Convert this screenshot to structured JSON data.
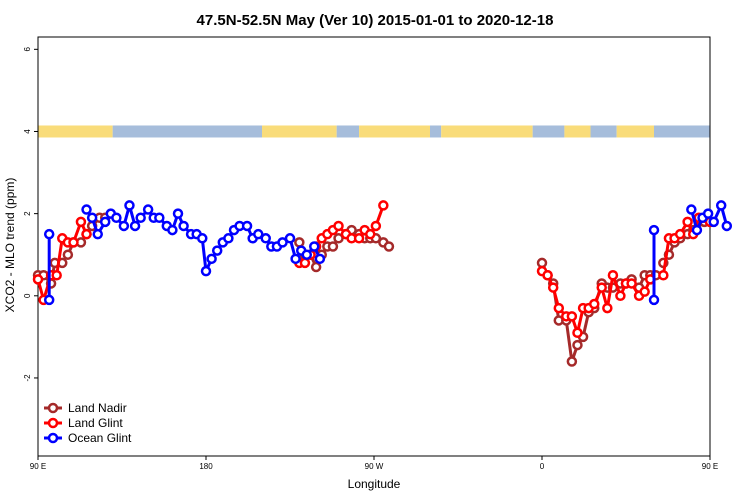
{
  "chart_data": {
    "type": "line",
    "title": "47.5N-52.5N May (Ver 10)   2015-01-01 to 2020-12-18",
    "xlabel": "Longitude",
    "ylabel": "XCO2 - MLO trend (ppm)",
    "xlim": [
      90,
      450
    ],
    "ylim": [
      -3.9,
      6.3
    ],
    "x_ticks": [
      {
        "value": 90,
        "label": "90 E"
      },
      {
        "value": 180,
        "label": "180"
      },
      {
        "value": 270,
        "label": "90 W"
      },
      {
        "value": 360,
        "label": "0"
      },
      {
        "value": 450,
        "label": "90 E"
      },
      {
        "value": 540,
        "label": "180"
      }
    ],
    "y_ticks": [
      {
        "value": -2,
        "label": "-2"
      },
      {
        "value": 0,
        "label": "0"
      },
      {
        "value": 2,
        "label": "2"
      },
      {
        "value": 4,
        "label": "4"
      },
      {
        "value": 6,
        "label": "6"
      }
    ],
    "land_ocean_band": {
      "y": 4,
      "colors": {
        "land": "#f9dc7a",
        "ocean": "#a6bddb"
      },
      "segments": [
        {
          "from": 90,
          "to": 130,
          "type": "land"
        },
        {
          "from": 130,
          "to": 210,
          "type": "ocean"
        },
        {
          "from": 210,
          "to": 250,
          "type": "land"
        },
        {
          "from": 250,
          "to": 262,
          "type": "ocean"
        },
        {
          "from": 262,
          "to": 300,
          "type": "land"
        },
        {
          "from": 300,
          "to": 306,
          "type": "ocean"
        },
        {
          "from": 306,
          "to": 355,
          "type": "land"
        },
        {
          "from": 355,
          "to": 372,
          "type": "ocean"
        },
        {
          "from": 372,
          "to": 386,
          "type": "land"
        },
        {
          "from": 386,
          "to": 400,
          "type": "ocean"
        },
        {
          "from": 400,
          "to": 420,
          "type": "land"
        },
        {
          "from": 420,
          "to": 450,
          "type": "ocean"
        }
      ]
    },
    "legend": {
      "position": "bottom-left",
      "entries": [
        {
          "name": "Land Nadir",
          "color": "#a52a2a"
        },
        {
          "name": "Land Glint",
          "color": "#ff0000"
        },
        {
          "name": "Ocean Glint",
          "color": "#0000ff"
        }
      ]
    },
    "series": [
      {
        "name": "Land Nadir",
        "color": "#a52a2a",
        "segments": [
          [
            [
              90,
              0.5
            ],
            [
              93,
              0.5
            ],
            [
              97,
              0.3
            ],
            [
              99,
              0.8
            ],
            [
              103,
              0.8
            ],
            [
              106,
              1.0
            ],
            [
              109,
              1.3
            ],
            [
              113,
              1.3
            ],
            [
              116,
              1.5
            ],
            [
              119,
              1.7
            ],
            [
              123,
              1.9
            ],
            [
              126,
              1.9
            ]
          ],
          [
            [
              230,
              1.3
            ],
            [
              233,
              1.0
            ],
            [
              236,
              1.0
            ],
            [
              239,
              0.7
            ],
            [
              242,
              1.0
            ],
            [
              245,
              1.2
            ],
            [
              248,
              1.2
            ],
            [
              251,
              1.4
            ],
            [
              255,
              1.5
            ],
            [
              258,
              1.6
            ],
            [
              262,
              1.5
            ],
            [
              265,
              1.4
            ],
            [
              268,
              1.4
            ],
            [
              271,
              1.4
            ],
            [
              275,
              1.3
            ],
            [
              278,
              1.2
            ]
          ],
          [
            [
              360,
              0.8
            ],
            [
              363,
              0.5
            ],
            [
              366,
              0.3
            ],
            [
              369,
              -0.6
            ],
            [
              373,
              -0.6
            ],
            [
              376,
              -1.6
            ],
            [
              379,
              -1.2
            ],
            [
              382,
              -1.0
            ],
            [
              385,
              -0.4
            ],
            [
              388,
              -0.3
            ],
            [
              392,
              0.3
            ],
            [
              395,
              0.2
            ],
            [
              398,
              0.2
            ],
            [
              402,
              0.3
            ],
            [
              405,
              0.3
            ],
            [
              408,
              0.4
            ],
            [
              412,
              0.2
            ],
            [
              415,
              0.5
            ],
            [
              418,
              0.5
            ],
            [
              421,
              0.5
            ]
          ],
          [
            [
              425,
              0.8
            ],
            [
              428,
              1.0
            ],
            [
              431,
              1.3
            ],
            [
              434,
              1.4
            ],
            [
              438,
              1.5
            ],
            [
              441,
              1.6
            ],
            [
              444,
              1.8
            ],
            [
              447,
              1.8
            ]
          ]
        ]
      },
      {
        "name": "Land Glint",
        "color": "#ff0000",
        "segments": [
          [
            [
              90,
              0.4
            ],
            [
              93,
              -0.1
            ],
            [
              97,
              0.5
            ],
            [
              100,
              0.5
            ],
            [
              103,
              1.4
            ],
            [
              106,
              1.3
            ],
            [
              109,
              1.3
            ],
            [
              113,
              1.8
            ],
            [
              116,
              1.5
            ]
          ],
          [
            [
              230,
              0.8
            ],
            [
              233,
              0.8
            ],
            [
              236,
              1.0
            ],
            [
              239,
              1.2
            ],
            [
              242,
              1.4
            ],
            [
              245,
              1.5
            ],
            [
              248,
              1.6
            ],
            [
              251,
              1.7
            ],
            [
              255,
              1.5
            ],
            [
              258,
              1.4
            ],
            [
              262,
              1.4
            ],
            [
              265,
              1.6
            ],
            [
              268,
              1.5
            ],
            [
              271,
              1.7
            ],
            [
              275,
              2.2
            ]
          ],
          [
            [
              360,
              0.6
            ],
            [
              363,
              0.5
            ],
            [
              366,
              0.2
            ],
            [
              369,
              -0.3
            ],
            [
              373,
              -0.5
            ],
            [
              376,
              -0.5
            ],
            [
              379,
              -0.9
            ],
            [
              382,
              -0.3
            ],
            [
              385,
              -0.3
            ],
            [
              388,
              -0.2
            ],
            [
              392,
              0.2
            ],
            [
              395,
              -0.3
            ],
            [
              398,
              0.5
            ],
            [
              402,
              0.0
            ],
            [
              405,
              0.3
            ],
            [
              408,
              0.3
            ],
            [
              412,
              0.0
            ],
            [
              415,
              0.1
            ],
            [
              418,
              0.4
            ]
          ],
          [
            [
              425,
              0.5
            ],
            [
              428,
              1.4
            ],
            [
              431,
              1.4
            ],
            [
              434,
              1.5
            ],
            [
              438,
              1.8
            ],
            [
              441,
              1.5
            ],
            [
              444,
              1.9
            ],
            [
              447,
              1.9
            ],
            [
              450,
              1.8
            ]
          ]
        ]
      },
      {
        "name": "Ocean Glint",
        "color": "#0000ff",
        "segments": [
          [
            [
              96,
              -0.1
            ],
            [
              96,
              1.5
            ]
          ],
          [
            [
              116,
              2.1
            ],
            [
              119,
              1.9
            ],
            [
              122,
              1.5
            ],
            [
              126,
              1.8
            ],
            [
              129,
              2.0
            ],
            [
              132,
              1.9
            ],
            [
              136,
              1.7
            ],
            [
              139,
              2.2
            ],
            [
              142,
              1.7
            ],
            [
              145,
              1.9
            ],
            [
              149,
              2.1
            ],
            [
              152,
              1.9
            ],
            [
              155,
              1.9
            ],
            [
              159,
              1.7
            ],
            [
              162,
              1.6
            ],
            [
              165,
              2.0
            ],
            [
              168,
              1.7
            ],
            [
              172,
              1.5
            ],
            [
              175,
              1.5
            ],
            [
              178,
              1.4
            ],
            [
              180,
              0.6
            ],
            [
              183,
              0.9
            ],
            [
              186,
              1.1
            ],
            [
              189,
              1.3
            ],
            [
              192,
              1.4
            ],
            [
              195,
              1.6
            ],
            [
              198,
              1.7
            ],
            [
              202,
              1.7
            ],
            [
              205,
              1.4
            ],
            [
              208,
              1.5
            ],
            [
              212,
              1.4
            ],
            [
              215,
              1.2
            ],
            [
              218,
              1.2
            ],
            [
              221,
              1.3
            ],
            [
              225,
              1.4
            ],
            [
              228,
              0.9
            ],
            [
              231,
              1.1
            ],
            [
              234,
              1.0
            ],
            [
              238,
              1.2
            ],
            [
              241,
              0.9
            ]
          ],
          [
            [
              420,
              -0.1
            ],
            [
              420,
              1.6
            ]
          ],
          [
            [
              440,
              2.1
            ],
            [
              443,
              1.6
            ],
            [
              446,
              1.9
            ],
            [
              449,
              2.0
            ],
            [
              452,
              1.8
            ],
            [
              456,
              2.2
            ],
            [
              459,
              1.7
            ]
          ]
        ]
      }
    ]
  }
}
